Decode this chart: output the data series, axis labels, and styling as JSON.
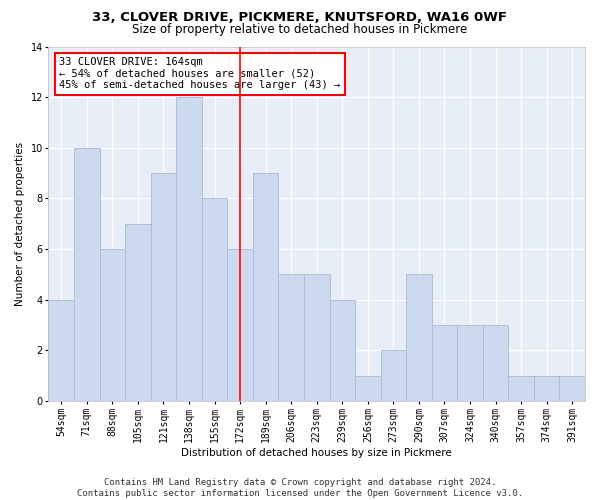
{
  "title1": "33, CLOVER DRIVE, PICKMERE, KNUTSFORD, WA16 0WF",
  "title2": "Size of property relative to detached houses in Pickmere",
  "xlabel": "Distribution of detached houses by size in Pickmere",
  "ylabel": "Number of detached properties",
  "categories": [
    "54sqm",
    "71sqm",
    "88sqm",
    "105sqm",
    "121sqm",
    "138sqm",
    "155sqm",
    "172sqm",
    "189sqm",
    "206sqm",
    "223sqm",
    "239sqm",
    "256sqm",
    "273sqm",
    "290sqm",
    "307sqm",
    "324sqm",
    "340sqm",
    "357sqm",
    "374sqm",
    "391sqm"
  ],
  "values": [
    4,
    10,
    6,
    7,
    9,
    12,
    8,
    6,
    9,
    5,
    5,
    4,
    1,
    2,
    5,
    3,
    3,
    3,
    1,
    1,
    1
  ],
  "bar_color": "#ccd9ee",
  "bar_edge_color": "#aabbd8",
  "ref_line_color": "red",
  "ref_line_x": 7,
  "annotation_text": "33 CLOVER DRIVE: 164sqm\n← 54% of detached houses are smaller (52)\n45% of semi-detached houses are larger (43) →",
  "annotation_box_facecolor": "white",
  "annotation_box_edgecolor": "red",
  "bg_color": "#e8eef8",
  "grid_color": "white",
  "footer": "Contains HM Land Registry data © Crown copyright and database right 2024.\nContains public sector information licensed under the Open Government Licence v3.0.",
  "ylim": [
    0,
    14
  ],
  "yticks": [
    0,
    2,
    4,
    6,
    8,
    10,
    12,
    14
  ],
  "title1_fontsize": 9.5,
  "title2_fontsize": 8.5,
  "axis_label_fontsize": 7.5,
  "tick_fontsize": 7,
  "annotation_fontsize": 7.5,
  "footer_fontsize": 6.5
}
